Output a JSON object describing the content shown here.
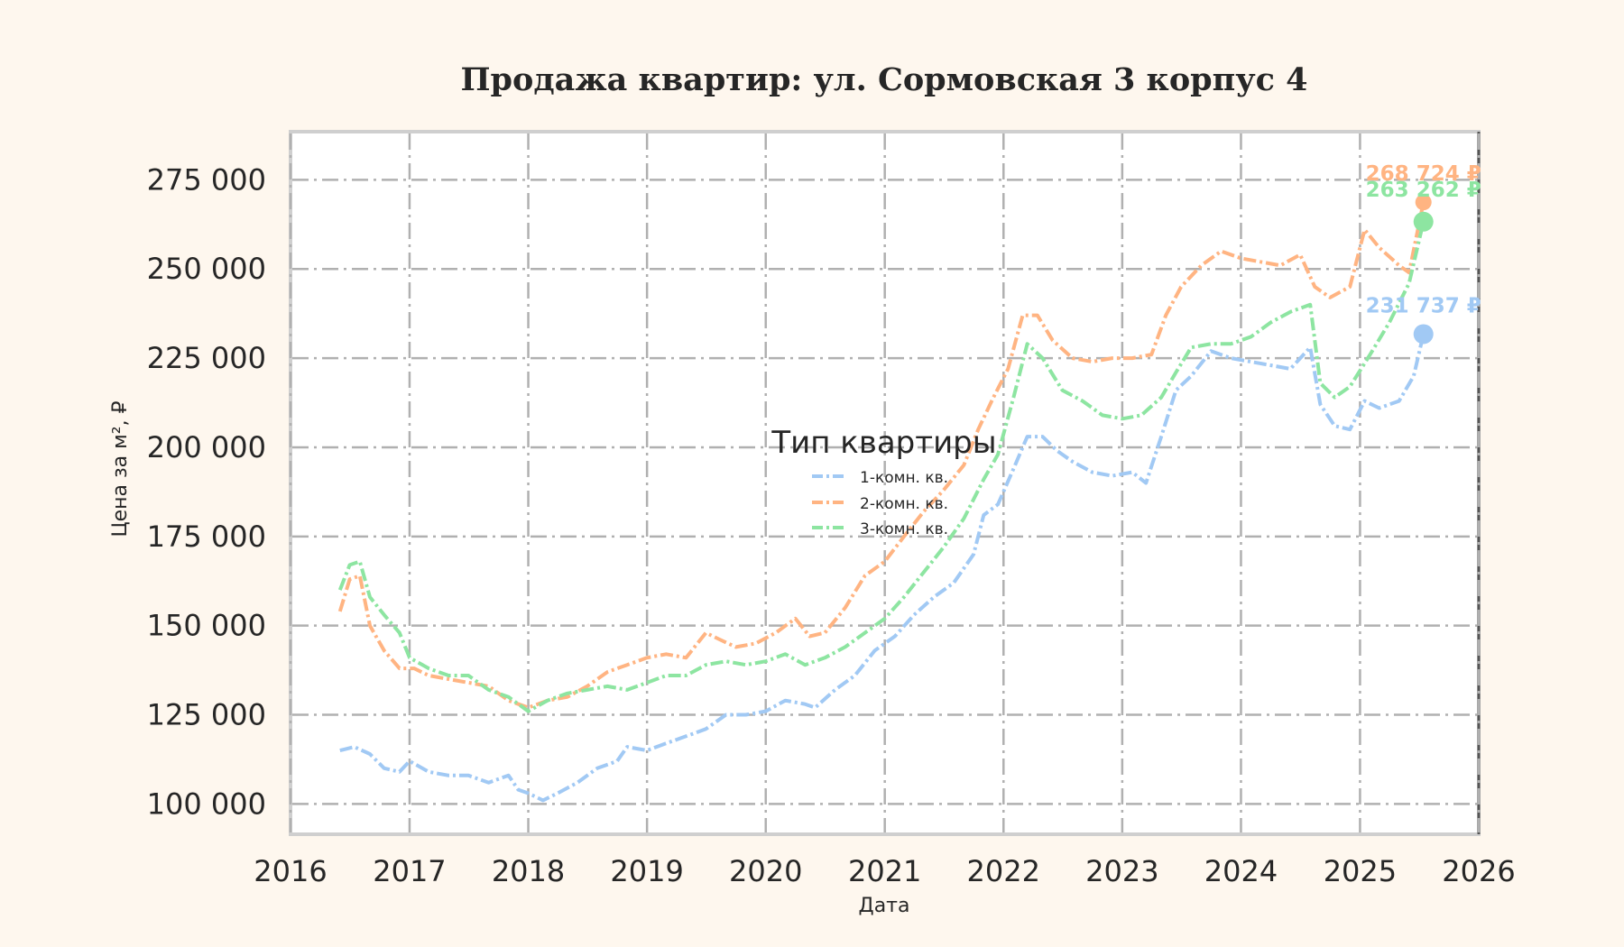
{
  "chart_data": {
    "type": "line",
    "title": "Продажа квартир: ул. Сормовская 3 корпус 4",
    "xlabel": "Дата",
    "ylabel": "Цена за м², ₽",
    "xlim": [
      "2016-01-01",
      "2026-01-01"
    ],
    "ylim": [
      91500,
      288500
    ],
    "x_ticks": [
      "2016",
      "2017",
      "2018",
      "2019",
      "2020",
      "2021",
      "2022",
      "2023",
      "2024",
      "2025",
      "2026"
    ],
    "y_ticks": [
      100000,
      125000,
      150000,
      175000,
      200000,
      225000,
      250000,
      275000
    ],
    "y_tick_labels": [
      "100 000",
      "125 000",
      "150 000",
      "175 000",
      "200 000",
      "225 000",
      "250 000",
      "275 000"
    ],
    "grid": true,
    "legend": {
      "title": "Тип квартиры",
      "placement": "center"
    },
    "series": [
      {
        "name": "1-комн. кв.",
        "color": "#a1c9f4",
        "end_value": 231737,
        "end_label": "231 737 ₽",
        "points": [
          [
            "2016-06-01",
            115000
          ],
          [
            "2016-07-15",
            116000
          ],
          [
            "2016-09-01",
            114000
          ],
          [
            "2016-10-15",
            110000
          ],
          [
            "2016-12-01",
            109000
          ],
          [
            "2017-01-01",
            112000
          ],
          [
            "2017-03-01",
            109000
          ],
          [
            "2017-05-01",
            108000
          ],
          [
            "2017-07-01",
            108000
          ],
          [
            "2017-09-01",
            106000
          ],
          [
            "2017-11-01",
            108000
          ],
          [
            "2017-12-01",
            104000
          ],
          [
            "2018-01-01",
            103000
          ],
          [
            "2018-02-15",
            101000
          ],
          [
            "2018-04-01",
            103000
          ],
          [
            "2018-06-01",
            106000
          ],
          [
            "2018-08-01",
            110000
          ],
          [
            "2018-10-01",
            112000
          ],
          [
            "2018-11-01",
            116000
          ],
          [
            "2019-01-01",
            115000
          ],
          [
            "2019-03-01",
            117000
          ],
          [
            "2019-05-01",
            119000
          ],
          [
            "2019-07-01",
            121000
          ],
          [
            "2019-09-01",
            125000
          ],
          [
            "2019-11-01",
            125000
          ],
          [
            "2020-01-01",
            126000
          ],
          [
            "2020-03-01",
            129000
          ],
          [
            "2020-05-01",
            128000
          ],
          [
            "2020-06-01",
            127000
          ],
          [
            "2020-08-01",
            132000
          ],
          [
            "2020-10-01",
            136000
          ],
          [
            "2020-12-01",
            143000
          ],
          [
            "2021-02-01",
            147000
          ],
          [
            "2021-04-01",
            153000
          ],
          [
            "2021-06-01",
            158000
          ],
          [
            "2021-08-01",
            162000
          ],
          [
            "2021-10-01",
            170000
          ],
          [
            "2021-11-01",
            181000
          ],
          [
            "2021-12-15",
            184000
          ],
          [
            "2022-02-01",
            194000
          ],
          [
            "2022-03-15",
            203000
          ],
          [
            "2022-05-01",
            203000
          ],
          [
            "2022-06-15",
            199000
          ],
          [
            "2022-08-01",
            196000
          ],
          [
            "2022-10-01",
            193000
          ],
          [
            "2022-12-01",
            192000
          ],
          [
            "2023-02-01",
            193000
          ],
          [
            "2023-03-15",
            190000
          ],
          [
            "2023-05-01",
            203000
          ],
          [
            "2023-06-15",
            216000
          ],
          [
            "2023-08-01",
            220000
          ],
          [
            "2023-10-01",
            227000
          ],
          [
            "2023-12-01",
            225000
          ],
          [
            "2024-02-01",
            224000
          ],
          [
            "2024-04-01",
            223000
          ],
          [
            "2024-06-01",
            222000
          ],
          [
            "2024-08-01",
            228000
          ],
          [
            "2024-09-01",
            212000
          ],
          [
            "2024-10-15",
            206000
          ],
          [
            "2024-12-01",
            205000
          ],
          [
            "2025-01-15",
            213000
          ],
          [
            "2025-03-01",
            211000
          ],
          [
            "2025-05-01",
            213000
          ],
          [
            "2025-06-15",
            220000
          ],
          [
            "2025-07-15",
            231737
          ]
        ]
      },
      {
        "name": "2-комн. кв.",
        "color": "#ffb482",
        "end_value": 268724,
        "end_label": "268 724 ₽",
        "points": [
          [
            "2016-06-01",
            154000
          ],
          [
            "2016-07-01",
            163000
          ],
          [
            "2016-08-01",
            164000
          ],
          [
            "2016-09-01",
            150000
          ],
          [
            "2016-10-15",
            143000
          ],
          [
            "2016-12-01",
            138000
          ],
          [
            "2017-01-15",
            138000
          ],
          [
            "2017-03-01",
            136000
          ],
          [
            "2017-05-01",
            135000
          ],
          [
            "2017-07-01",
            134000
          ],
          [
            "2017-09-01",
            133000
          ],
          [
            "2017-11-01",
            129000
          ],
          [
            "2018-01-01",
            127000
          ],
          [
            "2018-03-01",
            129000
          ],
          [
            "2018-05-01",
            130000
          ],
          [
            "2018-07-01",
            133000
          ],
          [
            "2018-09-01",
            137000
          ],
          [
            "2018-11-01",
            139000
          ],
          [
            "2019-01-01",
            141000
          ],
          [
            "2019-03-01",
            142000
          ],
          [
            "2019-05-01",
            141000
          ],
          [
            "2019-07-01",
            148000
          ],
          [
            "2019-08-15",
            146000
          ],
          [
            "2019-10-01",
            144000
          ],
          [
            "2019-12-01",
            145000
          ],
          [
            "2020-02-01",
            148000
          ],
          [
            "2020-04-01",
            152000
          ],
          [
            "2020-05-15",
            147000
          ],
          [
            "2020-07-01",
            148000
          ],
          [
            "2020-09-01",
            155000
          ],
          [
            "2020-11-01",
            164000
          ],
          [
            "2021-01-01",
            168000
          ],
          [
            "2021-03-01",
            175000
          ],
          [
            "2021-05-01",
            182000
          ],
          [
            "2021-07-01",
            188000
          ],
          [
            "2021-09-01",
            195000
          ],
          [
            "2021-10-15",
            205000
          ],
          [
            "2021-12-01",
            214000
          ],
          [
            "2022-01-15",
            222000
          ],
          [
            "2022-03-01",
            237000
          ],
          [
            "2022-04-15",
            237000
          ],
          [
            "2022-06-01",
            230000
          ],
          [
            "2022-08-01",
            225000
          ],
          [
            "2022-10-01",
            224000
          ],
          [
            "2022-12-01",
            225000
          ],
          [
            "2023-02-01",
            225000
          ],
          [
            "2023-04-01",
            226000
          ],
          [
            "2023-05-15",
            237000
          ],
          [
            "2023-07-01",
            245000
          ],
          [
            "2023-09-01",
            251000
          ],
          [
            "2023-11-01",
            255000
          ],
          [
            "2024-01-01",
            253000
          ],
          [
            "2024-03-01",
            252000
          ],
          [
            "2024-05-01",
            251000
          ],
          [
            "2024-07-01",
            254000
          ],
          [
            "2024-08-15",
            245000
          ],
          [
            "2024-10-01",
            242000
          ],
          [
            "2024-12-01",
            245000
          ],
          [
            "2025-01-15",
            261000
          ],
          [
            "2025-03-01",
            256000
          ],
          [
            "2025-05-01",
            251000
          ],
          [
            "2025-06-01",
            249000
          ],
          [
            "2025-07-15",
            268724
          ]
        ]
      },
      {
        "name": "3-комн. кв.",
        "color": "#8de5a1",
        "end_value": 263262,
        "end_label": "263 262 ₽",
        "points": [
          [
            "2016-06-01",
            160000
          ],
          [
            "2016-07-01",
            167000
          ],
          [
            "2016-08-01",
            168000
          ],
          [
            "2016-09-01",
            158000
          ],
          [
            "2016-10-15",
            153000
          ],
          [
            "2016-12-01",
            148000
          ],
          [
            "2017-01-01",
            141000
          ],
          [
            "2017-03-01",
            138000
          ],
          [
            "2017-05-01",
            136000
          ],
          [
            "2017-07-01",
            136000
          ],
          [
            "2017-09-01",
            132000
          ],
          [
            "2017-11-01",
            130000
          ],
          [
            "2018-01-01",
            126000
          ],
          [
            "2018-03-01",
            129000
          ],
          [
            "2018-05-01",
            131000
          ],
          [
            "2018-07-01",
            132000
          ],
          [
            "2018-09-01",
            133000
          ],
          [
            "2018-11-01",
            132000
          ],
          [
            "2019-01-01",
            134000
          ],
          [
            "2019-03-01",
            136000
          ],
          [
            "2019-05-01",
            136000
          ],
          [
            "2019-07-01",
            139000
          ],
          [
            "2019-09-01",
            140000
          ],
          [
            "2019-11-01",
            139000
          ],
          [
            "2020-01-01",
            140000
          ],
          [
            "2020-03-01",
            142000
          ],
          [
            "2020-05-01",
            139000
          ],
          [
            "2020-07-01",
            141000
          ],
          [
            "2020-09-01",
            144000
          ],
          [
            "2020-11-01",
            148000
          ],
          [
            "2021-01-01",
            152000
          ],
          [
            "2021-03-01",
            158000
          ],
          [
            "2021-05-01",
            165000
          ],
          [
            "2021-07-01",
            172000
          ],
          [
            "2021-09-01",
            180000
          ],
          [
            "2021-11-01",
            191000
          ],
          [
            "2021-12-15",
            198000
          ],
          [
            "2022-02-01",
            214000
          ],
          [
            "2022-03-15",
            229000
          ],
          [
            "2022-05-01",
            225000
          ],
          [
            "2022-07-01",
            216000
          ],
          [
            "2022-09-01",
            213000
          ],
          [
            "2022-11-01",
            209000
          ],
          [
            "2023-01-01",
            208000
          ],
          [
            "2023-03-01",
            209000
          ],
          [
            "2023-05-01",
            214000
          ],
          [
            "2023-06-15",
            221000
          ],
          [
            "2023-08-01",
            228000
          ],
          [
            "2023-10-01",
            229000
          ],
          [
            "2023-12-01",
            229000
          ],
          [
            "2024-02-01",
            231000
          ],
          [
            "2024-04-01",
            235000
          ],
          [
            "2024-06-01",
            238000
          ],
          [
            "2024-08-01",
            240000
          ],
          [
            "2024-09-01",
            218000
          ],
          [
            "2024-10-15",
            214000
          ],
          [
            "2024-12-01",
            217000
          ],
          [
            "2025-02-01",
            226000
          ],
          [
            "2025-04-01",
            235000
          ],
          [
            "2025-06-01",
            246000
          ],
          [
            "2025-07-15",
            263262
          ]
        ]
      }
    ]
  }
}
